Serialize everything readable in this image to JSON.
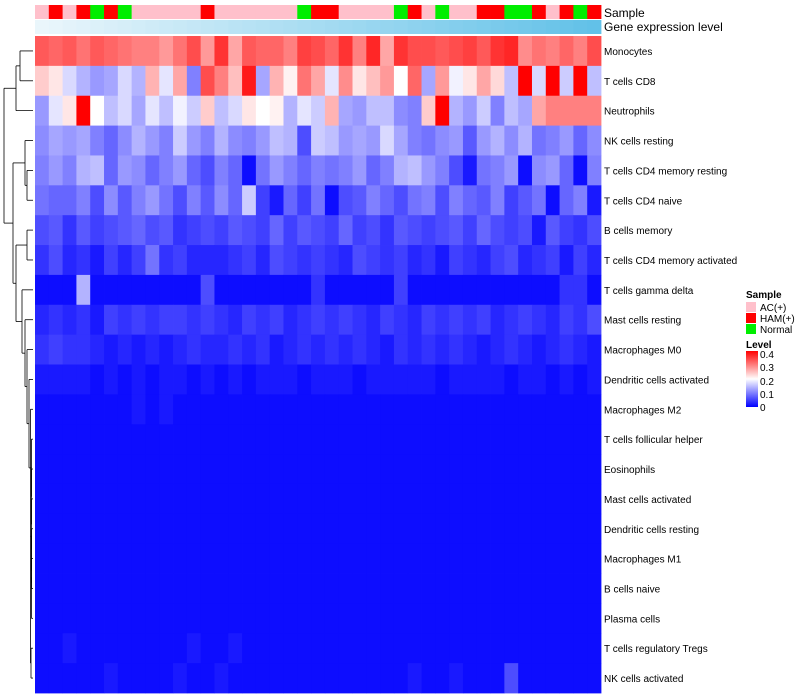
{
  "chart_data": {
    "type": "heatmap",
    "title": "",
    "annotations": {
      "sample_label": "Sample",
      "expression_label": "Gene expression level",
      "sample_groups": [
        "AC(+)",
        "HAM(+)",
        "AC(+)",
        "HAM(+)",
        "Normal",
        "HAM(+)",
        "Normal",
        "AC(+)",
        "AC(+)",
        "AC(+)",
        "AC(+)",
        "AC(+)",
        "HAM(+)",
        "AC(+)",
        "AC(+)",
        "AC(+)",
        "AC(+)",
        "AC(+)",
        "AC(+)",
        "Normal",
        "HAM(+)",
        "HAM(+)",
        "AC(+)",
        "AC(+)",
        "AC(+)",
        "AC(+)",
        "Normal",
        "HAM(+)",
        "AC(+)",
        "Normal",
        "AC(+)",
        "AC(+)",
        "HAM(+)",
        "HAM(+)",
        "Normal",
        "Normal",
        "HAM(+)",
        "AC(+)",
        "HAM(+)",
        "Normal",
        "HAM(+)"
      ]
    },
    "rows": [
      "Monocytes",
      "T cells CD8",
      "Neutrophils",
      "NK cells resting",
      "T cells CD4 memory resting",
      "T cells CD4 naive",
      "B cells memory",
      "T cells CD4 memory activated",
      "T cells gamma delta",
      "Mast cells resting",
      "Macrophages M0",
      "Dendritic cells activated",
      "Macrophages M2",
      "T cells follicular helper",
      "Eosinophils",
      "Mast cells activated",
      "Dendritic cells resting",
      "Macrophages M1",
      "B cells naive",
      "Plasma cells",
      "T cells regulatory  Tregs",
      "NK cells activated"
    ],
    "values": [
      [
        0.33,
        0.32,
        0.33,
        0.31,
        0.33,
        0.32,
        0.31,
        0.3,
        0.3,
        0.28,
        0.31,
        0.34,
        0.28,
        0.36,
        0.27,
        0.33,
        0.32,
        0.32,
        0.3,
        0.35,
        0.34,
        0.32,
        0.36,
        0.3,
        0.37,
        0.27,
        0.36,
        0.34,
        0.34,
        0.33,
        0.34,
        0.35,
        0.33,
        0.36,
        0.37,
        0.29,
        0.31,
        0.3,
        0.32,
        0.3,
        0.34
      ],
      [
        0.24,
        0.22,
        0.17,
        0.14,
        0.12,
        0.13,
        0.17,
        0.14,
        0.26,
        0.18,
        0.27,
        0.1,
        0.34,
        0.3,
        0.25,
        0.38,
        0.13,
        0.26,
        0.21,
        0.31,
        0.27,
        0.18,
        0.29,
        0.22,
        0.25,
        0.28,
        0.2,
        0.32,
        0.13,
        0.28,
        0.19,
        0.22,
        0.27,
        0.23,
        0.15,
        0.4,
        0.17,
        0.41,
        0.16,
        0.42,
        0.15
      ],
      [
        0.12,
        0.18,
        0.22,
        0.42,
        0.2,
        0.15,
        0.17,
        0.13,
        0.18,
        0.15,
        0.19,
        0.16,
        0.24,
        0.15,
        0.17,
        0.22,
        0.2,
        0.21,
        0.14,
        0.18,
        0.16,
        0.26,
        0.13,
        0.12,
        0.15,
        0.15,
        0.11,
        0.1,
        0.24,
        0.4,
        0.14,
        0.12,
        0.16,
        0.1,
        0.15,
        0.13,
        0.27,
        0.3,
        0.3,
        0.3,
        0.3
      ],
      [
        0.11,
        0.13,
        0.12,
        0.13,
        0.1,
        0.08,
        0.11,
        0.14,
        0.12,
        0.1,
        0.16,
        0.12,
        0.1,
        0.14,
        0.11,
        0.1,
        0.12,
        0.15,
        0.14,
        0.06,
        0.16,
        0.15,
        0.12,
        0.13,
        0.12,
        0.17,
        0.13,
        0.1,
        0.09,
        0.11,
        0.12,
        0.07,
        0.12,
        0.14,
        0.11,
        0.14,
        0.09,
        0.1,
        0.12,
        0.08,
        0.11
      ],
      [
        0.1,
        0.12,
        0.1,
        0.14,
        0.15,
        0.08,
        0.12,
        0.11,
        0.08,
        0.1,
        0.12,
        0.08,
        0.06,
        0.1,
        0.08,
        0.01,
        0.09,
        0.12,
        0.1,
        0.08,
        0.1,
        0.09,
        0.1,
        0.12,
        0.08,
        0.1,
        0.14,
        0.15,
        0.12,
        0.1,
        0.06,
        0.02,
        0.09,
        0.1,
        0.12,
        0.01,
        0.11,
        0.12,
        0.08,
        0.01,
        0.1
      ],
      [
        0.09,
        0.08,
        0.08,
        0.1,
        0.06,
        0.11,
        0.07,
        0.1,
        0.12,
        0.09,
        0.06,
        0.1,
        0.07,
        0.11,
        0.08,
        0.16,
        0.05,
        0.02,
        0.08,
        0.05,
        0.09,
        0.01,
        0.06,
        0.07,
        0.1,
        0.08,
        0.06,
        0.09,
        0.1,
        0.06,
        0.1,
        0.08,
        0.07,
        0.1,
        0.05,
        0.07,
        0.09,
        0.01,
        0.08,
        0.1,
        0.02
      ],
      [
        0.06,
        0.07,
        0.04,
        0.07,
        0.05,
        0.06,
        0.07,
        0.08,
        0.06,
        0.07,
        0.04,
        0.05,
        0.06,
        0.05,
        0.07,
        0.06,
        0.05,
        0.08,
        0.05,
        0.07,
        0.06,
        0.05,
        0.08,
        0.05,
        0.06,
        0.04,
        0.07,
        0.06,
        0.05,
        0.06,
        0.07,
        0.05,
        0.08,
        0.06,
        0.05,
        0.06,
        0.02,
        0.07,
        0.05,
        0.04,
        0.06
      ],
      [
        0.04,
        0.06,
        0.03,
        0.04,
        0.02,
        0.05,
        0.03,
        0.05,
        0.09,
        0.04,
        0.05,
        0.03,
        0.03,
        0.03,
        0.04,
        0.05,
        0.03,
        0.06,
        0.05,
        0.04,
        0.05,
        0.04,
        0.03,
        0.06,
        0.05,
        0.04,
        0.05,
        0.03,
        0.04,
        0.02,
        0.05,
        0.04,
        0.03,
        0.05,
        0.06,
        0.03,
        0.04,
        0.05,
        0.02,
        0.05,
        0.03
      ],
      [
        0.01,
        0.01,
        0.01,
        0.14,
        0.01,
        0.01,
        0.01,
        0.01,
        0.01,
        0.01,
        0.01,
        0.01,
        0.06,
        0.01,
        0.01,
        0.01,
        0.01,
        0.01,
        0.01,
        0.01,
        0.04,
        0.01,
        0.01,
        0.01,
        0.01,
        0.01,
        0.05,
        0.01,
        0.01,
        0.01,
        0.01,
        0.01,
        0.01,
        0.01,
        0.01,
        0.01,
        0.01,
        0.01,
        0.04,
        0.04,
        0.01
      ],
      [
        0.03,
        0.04,
        0.03,
        0.04,
        0.02,
        0.05,
        0.04,
        0.05,
        0.04,
        0.05,
        0.05,
        0.04,
        0.05,
        0.04,
        0.03,
        0.05,
        0.04,
        0.05,
        0.03,
        0.04,
        0.05,
        0.04,
        0.05,
        0.04,
        0.03,
        0.05,
        0.04,
        0.03,
        0.05,
        0.04,
        0.05,
        0.04,
        0.05,
        0.03,
        0.04,
        0.05,
        0.04,
        0.03,
        0.05,
        0.04,
        0.06
      ],
      [
        0.04,
        0.05,
        0.04,
        0.04,
        0.03,
        0.02,
        0.03,
        0.02,
        0.03,
        0.02,
        0.03,
        0.04,
        0.03,
        0.03,
        0.04,
        0.03,
        0.04,
        0.02,
        0.03,
        0.04,
        0.03,
        0.04,
        0.03,
        0.04,
        0.03,
        0.02,
        0.04,
        0.03,
        0.04,
        0.03,
        0.04,
        0.03,
        0.02,
        0.03,
        0.04,
        0.03,
        0.02,
        0.03,
        0.04,
        0.03,
        0.02
      ],
      [
        0.02,
        0.02,
        0.02,
        0.02,
        0.01,
        0.02,
        0.01,
        0.02,
        0.01,
        0.02,
        0.02,
        0.01,
        0.02,
        0.01,
        0.02,
        0.01,
        0.02,
        0.02,
        0.02,
        0.01,
        0.02,
        0.02,
        0.02,
        0.01,
        0.02,
        0.02,
        0.02,
        0.02,
        0.02,
        0.01,
        0.02,
        0.02,
        0.02,
        0.02,
        0.01,
        0.02,
        0.02,
        0.01,
        0.02,
        0.01,
        0.02
      ],
      [
        0.01,
        0.01,
        0.01,
        0.01,
        0.01,
        0.01,
        0.01,
        0.02,
        0.01,
        0.02,
        0.01,
        0.01,
        0.01,
        0.01,
        0.01,
        0.01,
        0.01,
        0.01,
        0.01,
        0.01,
        0.01,
        0.01,
        0.01,
        0.01,
        0.01,
        0.01,
        0.01,
        0.01,
        0.01,
        0.01,
        0.01,
        0.01,
        0.01,
        0.01,
        0.01,
        0.01,
        0.01,
        0.01,
        0.01,
        0.01,
        0.01
      ],
      [
        0.01,
        0.01,
        0.01,
        0.01,
        0.01,
        0.01,
        0.01,
        0.01,
        0.01,
        0.01,
        0.01,
        0.01,
        0.01,
        0.01,
        0.01,
        0.01,
        0.01,
        0.01,
        0.01,
        0.01,
        0.01,
        0.01,
        0.01,
        0.01,
        0.01,
        0.01,
        0.01,
        0.01,
        0.01,
        0.01,
        0.01,
        0.01,
        0.01,
        0.01,
        0.01,
        0.01,
        0.01,
        0.01,
        0.01,
        0.01,
        0.01
      ],
      [
        0.01,
        0.01,
        0.01,
        0.01,
        0.01,
        0.01,
        0.01,
        0.01,
        0.01,
        0.01,
        0.01,
        0.01,
        0.01,
        0.01,
        0.01,
        0.01,
        0.01,
        0.01,
        0.01,
        0.01,
        0.01,
        0.01,
        0.01,
        0.01,
        0.01,
        0.01,
        0.01,
        0.01,
        0.01,
        0.01,
        0.01,
        0.01,
        0.01,
        0.01,
        0.01,
        0.01,
        0.01,
        0.01,
        0.01,
        0.01,
        0.01
      ],
      [
        0.01,
        0.01,
        0.01,
        0.01,
        0.01,
        0.01,
        0.01,
        0.01,
        0.01,
        0.01,
        0.01,
        0.01,
        0.01,
        0.01,
        0.01,
        0.01,
        0.01,
        0.01,
        0.01,
        0.01,
        0.01,
        0.01,
        0.01,
        0.01,
        0.01,
        0.01,
        0.01,
        0.01,
        0.01,
        0.01,
        0.01,
        0.01,
        0.01,
        0.01,
        0.01,
        0.01,
        0.01,
        0.01,
        0.01,
        0.01,
        0.01
      ],
      [
        0.01,
        0.01,
        0.01,
        0.01,
        0.01,
        0.01,
        0.01,
        0.01,
        0.01,
        0.01,
        0.01,
        0.01,
        0.01,
        0.01,
        0.01,
        0.01,
        0.01,
        0.01,
        0.01,
        0.01,
        0.01,
        0.01,
        0.01,
        0.01,
        0.01,
        0.01,
        0.01,
        0.01,
        0.01,
        0.01,
        0.01,
        0.01,
        0.01,
        0.01,
        0.01,
        0.01,
        0.01,
        0.01,
        0.01,
        0.01,
        0.01
      ],
      [
        0.01,
        0.01,
        0.01,
        0.01,
        0.01,
        0.01,
        0.01,
        0.01,
        0.01,
        0.01,
        0.01,
        0.01,
        0.01,
        0.01,
        0.01,
        0.01,
        0.01,
        0.01,
        0.01,
        0.01,
        0.01,
        0.01,
        0.01,
        0.01,
        0.01,
        0.01,
        0.01,
        0.01,
        0.01,
        0.01,
        0.01,
        0.01,
        0.01,
        0.01,
        0.01,
        0.01,
        0.01,
        0.01,
        0.01,
        0.01,
        0.01
      ],
      [
        0.01,
        0.01,
        0.01,
        0.01,
        0.01,
        0.01,
        0.01,
        0.01,
        0.01,
        0.01,
        0.01,
        0.01,
        0.01,
        0.01,
        0.01,
        0.01,
        0.01,
        0.01,
        0.01,
        0.01,
        0.01,
        0.01,
        0.01,
        0.01,
        0.01,
        0.01,
        0.01,
        0.01,
        0.01,
        0.01,
        0.01,
        0.01,
        0.01,
        0.01,
        0.01,
        0.01,
        0.01,
        0.01,
        0.01,
        0.01,
        0.01
      ],
      [
        0.01,
        0.01,
        0.01,
        0.01,
        0.01,
        0.01,
        0.01,
        0.01,
        0.01,
        0.01,
        0.01,
        0.01,
        0.01,
        0.01,
        0.01,
        0.01,
        0.01,
        0.01,
        0.01,
        0.01,
        0.01,
        0.01,
        0.01,
        0.01,
        0.01,
        0.01,
        0.01,
        0.01,
        0.01,
        0.01,
        0.01,
        0.01,
        0.01,
        0.01,
        0.01,
        0.01,
        0.01,
        0.01,
        0.01,
        0.01,
        0.01
      ],
      [
        0.01,
        0.01,
        0.02,
        0.01,
        0.01,
        0.01,
        0.01,
        0.01,
        0.01,
        0.01,
        0.01,
        0.02,
        0.01,
        0.01,
        0.02,
        0.01,
        0.01,
        0.01,
        0.01,
        0.01,
        0.01,
        0.01,
        0.01,
        0.01,
        0.01,
        0.01,
        0.01,
        0.01,
        0.01,
        0.01,
        0.01,
        0.01,
        0.01,
        0.01,
        0.01,
        0.01,
        0.01,
        0.01,
        0.01,
        0.01,
        0.01
      ],
      [
        0.01,
        0.01,
        0.01,
        0.01,
        0.01,
        0.02,
        0.01,
        0.01,
        0.01,
        0.01,
        0.02,
        0.01,
        0.01,
        0.02,
        0.01,
        0.01,
        0.01,
        0.01,
        0.01,
        0.01,
        0.01,
        0.01,
        0.01,
        0.01,
        0.01,
        0.01,
        0.01,
        0.02,
        0.01,
        0.01,
        0.02,
        0.01,
        0.01,
        0.01,
        0.06,
        0.01,
        0.01,
        0.01,
        0.01,
        0.01,
        0.01
      ]
    ],
    "legend": {
      "sample_title": "Sample",
      "sample_items": [
        {
          "label": "AC(+)",
          "color": "#FFC0CB"
        },
        {
          "label": "HAM(+)",
          "color": "#FF0000"
        },
        {
          "label": "Normal",
          "color": "#00EE00"
        }
      ],
      "level_title": "Level",
      "level_ticks": [
        "0.4",
        "0.3",
        "0.2",
        "0.1",
        "0"
      ],
      "level_range": [
        0,
        0.4
      ],
      "colors": {
        "low": "#0000FF",
        "mid": "#FFFFFF",
        "high": "#FF0000",
        "expression_left": "#EAF6FB",
        "expression_right": "#62C1E8"
      }
    }
  }
}
